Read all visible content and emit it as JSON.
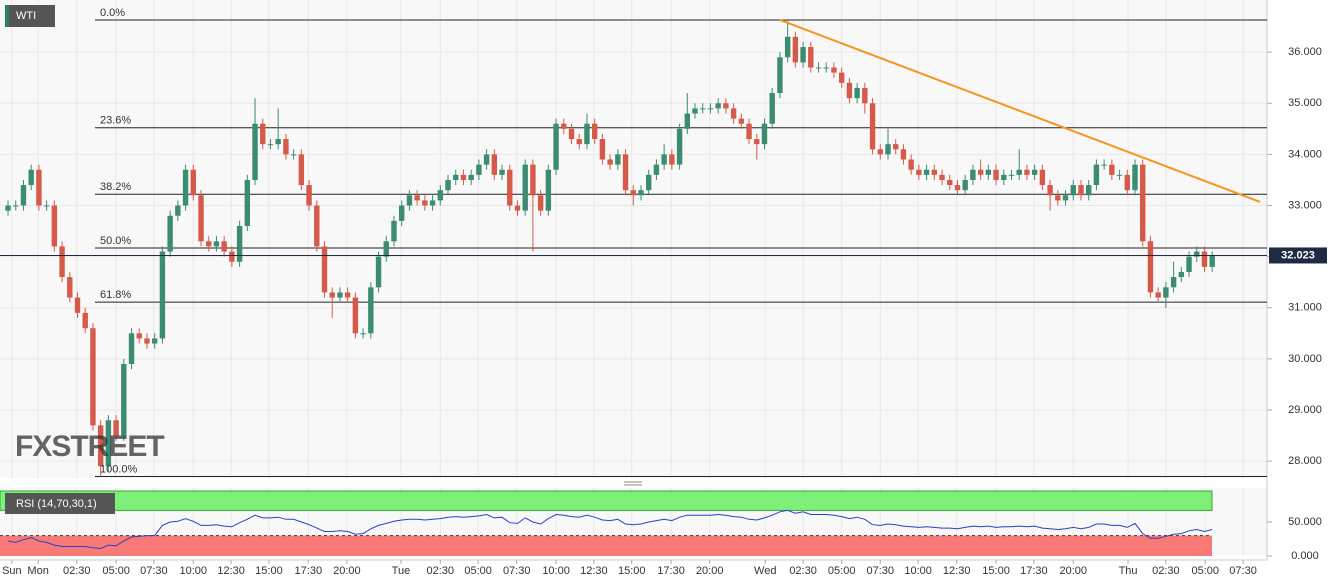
{
  "chart_data": {
    "type": "candlestick",
    "title": "WTI",
    "watermark": "FXSTREET",
    "open": [
      32.9,
      33.0,
      33.0,
      33.4,
      33.7,
      33.0,
      33.0,
      32.2,
      31.6,
      31.2,
      30.9,
      30.6,
      28.7,
      27.9,
      28.8,
      28.5,
      29.9,
      30.5,
      30.4,
      30.3,
      30.4,
      32.1,
      32.8,
      33.0,
      33.7,
      33.2,
      32.3,
      32.2,
      32.3,
      32.1,
      31.9,
      32.6,
      33.5,
      34.6,
      34.2,
      34.2,
      34.3,
      34.0,
      34.0,
      33.4,
      33.0,
      32.2,
      31.3,
      31.2,
      31.3,
      31.2,
      30.5,
      30.5,
      31.4,
      32.0,
      32.3,
      32.7,
      33.0,
      33.2,
      33.1,
      33.0,
      33.1,
      33.3,
      33.5,
      33.6,
      33.5,
      33.6,
      33.8,
      34.0,
      33.6,
      33.7,
      33.0,
      32.9,
      33.8,
      33.2,
      32.9,
      33.7,
      34.6,
      34.5,
      34.3,
      34.2,
      34.6,
      34.3,
      33.9,
      33.8,
      34.0,
      33.3,
      33.2,
      33.3,
      33.6,
      33.8,
      34.0,
      33.8,
      34.5,
      34.8,
      34.9,
      34.9,
      34.9,
      35.0,
      34.9,
      34.7,
      34.6,
      34.3,
      34.2,
      34.6,
      35.2,
      35.9,
      36.3,
      35.8,
      36.1,
      35.7,
      35.7,
      35.7,
      35.6,
      35.4,
      35.1,
      35.3,
      35.0,
      34.1,
      34.0,
      34.2,
      34.1,
      33.9,
      33.7,
      33.6,
      33.7,
      33.6,
      33.5,
      33.4,
      33.3,
      33.5,
      33.7,
      33.6,
      33.7,
      33.5,
      33.6,
      33.6,
      33.7,
      33.6,
      33.7,
      33.4,
      33.2,
      33.1,
      33.2,
      33.4,
      33.2,
      33.4,
      33.8,
      33.8,
      33.6,
      33.6,
      33.3,
      33.8,
      32.3,
      31.3,
      31.2,
      31.4,
      31.6,
      31.7,
      32.0,
      32.1,
      31.8
    ],
    "high": [
      33.1,
      33.1,
      33.5,
      33.8,
      33.8,
      33.1,
      33.1,
      32.3,
      31.7,
      31.3,
      31.0,
      30.7,
      28.8,
      28.9,
      28.9,
      30.0,
      30.6,
      30.6,
      30.5,
      30.5,
      32.2,
      32.9,
      33.1,
      33.8,
      33.8,
      33.3,
      32.4,
      32.4,
      32.4,
      32.2,
      32.7,
      33.6,
      35.1,
      34.7,
      34.3,
      34.9,
      34.4,
      34.1,
      34.1,
      33.5,
      33.1,
      32.3,
      31.4,
      31.4,
      31.4,
      31.3,
      30.6,
      31.5,
      32.1,
      32.4,
      32.8,
      33.1,
      33.3,
      33.3,
      33.2,
      33.2,
      33.4,
      33.6,
      33.7,
      33.7,
      33.7,
      33.9,
      34.1,
      34.1,
      33.8,
      33.8,
      33.1,
      33.9,
      33.9,
      33.3,
      33.8,
      34.7,
      34.7,
      34.6,
      34.4,
      34.8,
      34.7,
      34.4,
      34.0,
      34.1,
      34.1,
      33.4,
      33.4,
      33.7,
      33.9,
      34.2,
      34.1,
      34.6,
      35.2,
      35.0,
      35.0,
      35.0,
      35.1,
      35.1,
      35.0,
      34.8,
      34.7,
      34.4,
      34.7,
      35.3,
      36.0,
      36.63,
      36.4,
      36.2,
      36.2,
      35.8,
      35.8,
      35.8,
      35.7,
      35.5,
      35.4,
      35.4,
      35.1,
      34.2,
      34.5,
      34.3,
      34.2,
      34.0,
      33.8,
      33.8,
      33.8,
      33.7,
      33.6,
      33.5,
      33.6,
      33.8,
      33.9,
      33.8,
      33.8,
      33.7,
      33.7,
      34.1,
      33.8,
      33.8,
      33.8,
      33.5,
      33.3,
      33.3,
      33.5,
      33.5,
      33.5,
      33.9,
      33.9,
      33.9,
      33.7,
      33.7,
      33.9,
      33.9,
      32.4,
      31.4,
      31.5,
      31.9,
      31.8,
      32.1,
      32.2,
      32.2,
      32.1
    ],
    "low": [
      32.8,
      32.9,
      32.9,
      33.3,
      32.9,
      32.9,
      32.1,
      31.5,
      31.1,
      30.8,
      30.5,
      28.6,
      27.7,
      27.8,
      28.4,
      28.4,
      29.8,
      30.3,
      30.2,
      30.2,
      30.3,
      32.0,
      32.7,
      32.9,
      33.1,
      32.2,
      32.1,
      32.1,
      32.0,
      31.8,
      31.8,
      32.5,
      33.4,
      34.1,
      34.1,
      34.1,
      33.9,
      33.9,
      33.3,
      32.9,
      32.1,
      31.2,
      30.8,
      31.1,
      31.1,
      30.4,
      30.4,
      30.4,
      31.3,
      31.9,
      32.2,
      32.6,
      32.9,
      33.0,
      32.9,
      32.9,
      33.0,
      33.2,
      33.4,
      33.4,
      33.4,
      33.5,
      33.7,
      33.5,
      33.5,
      32.9,
      32.8,
      32.8,
      32.1,
      32.8,
      32.8,
      33.6,
      34.4,
      34.2,
      34.1,
      34.1,
      34.2,
      33.8,
      33.7,
      33.7,
      33.2,
      33.0,
      33.1,
      33.2,
      33.5,
      33.7,
      33.7,
      33.7,
      34.4,
      34.7,
      34.8,
      34.8,
      34.8,
      34.8,
      34.6,
      34.5,
      34.2,
      33.9,
      34.1,
      34.5,
      35.1,
      35.8,
      35.7,
      35.7,
      35.6,
      35.6,
      35.6,
      35.5,
      35.3,
      35.0,
      35.0,
      34.8,
      34.0,
      33.9,
      33.9,
      34.0,
      33.8,
      33.6,
      33.5,
      33.5,
      33.5,
      33.4,
      33.3,
      33.2,
      33.2,
      33.4,
      33.5,
      33.5,
      33.4,
      33.4,
      33.5,
      33.5,
      33.5,
      33.5,
      33.3,
      32.9,
      33.0,
      33.0,
      33.1,
      33.1,
      33.1,
      33.3,
      33.7,
      33.5,
      33.5,
      33.2,
      33.2,
      32.2,
      31.2,
      31.1,
      31.0,
      31.3,
      31.5,
      31.6,
      31.9,
      31.7,
      31.7
    ],
    "close": [
      33.0,
      33.0,
      33.4,
      33.7,
      33.0,
      33.0,
      32.2,
      31.6,
      31.2,
      30.9,
      30.6,
      28.7,
      27.9,
      28.8,
      28.5,
      29.9,
      30.5,
      30.4,
      30.3,
      30.4,
      32.1,
      32.8,
      33.0,
      33.7,
      33.2,
      32.3,
      32.2,
      32.3,
      32.1,
      31.9,
      32.6,
      33.5,
      34.6,
      34.2,
      34.2,
      34.3,
      34.0,
      34.0,
      33.4,
      33.0,
      32.2,
      31.3,
      31.2,
      31.3,
      31.2,
      30.5,
      30.5,
      31.4,
      32.0,
      32.3,
      32.7,
      33.0,
      33.2,
      33.1,
      33.0,
      33.1,
      33.3,
      33.5,
      33.6,
      33.5,
      33.6,
      33.8,
      34.0,
      33.6,
      33.7,
      33.0,
      32.9,
      33.8,
      33.2,
      32.9,
      33.7,
      34.6,
      34.5,
      34.3,
      34.2,
      34.6,
      34.3,
      33.9,
      33.8,
      34.0,
      33.3,
      33.2,
      33.3,
      33.6,
      33.8,
      34.0,
      33.8,
      34.5,
      34.8,
      34.9,
      34.9,
      34.9,
      35.0,
      34.9,
      34.7,
      34.6,
      34.3,
      34.2,
      34.6,
      35.2,
      35.9,
      36.3,
      35.8,
      36.1,
      35.7,
      35.7,
      35.7,
      35.6,
      35.4,
      35.1,
      35.3,
      35.0,
      34.1,
      34.0,
      34.2,
      34.1,
      33.9,
      33.7,
      33.6,
      33.7,
      33.6,
      33.5,
      33.4,
      33.3,
      33.5,
      33.7,
      33.6,
      33.7,
      33.5,
      33.6,
      33.6,
      33.7,
      33.6,
      33.7,
      33.4,
      33.2,
      33.1,
      33.2,
      33.4,
      33.2,
      33.4,
      33.8,
      33.8,
      33.6,
      33.6,
      33.3,
      33.8,
      32.3,
      31.3,
      31.2,
      31.4,
      31.6,
      31.7,
      32.0,
      32.1,
      31.8,
      32.023
    ],
    "colors": {
      "up": "#3b8c70",
      "down": "#d65a4a"
    },
    "xlim": [
      -1.04,
      163.1
    ],
    "xticks": [
      {
        "value": 0.5,
        "label": "Sun"
      },
      {
        "value": 3.9,
        "label": "Mon"
      },
      {
        "value": 8.9,
        "label": "02:30"
      },
      {
        "value": 14.0,
        "label": "05:00"
      },
      {
        "value": 18.9,
        "label": "07:30"
      },
      {
        "value": 24.0,
        "label": "10:00"
      },
      {
        "value": 28.9,
        "label": "12:30"
      },
      {
        "value": 33.8,
        "label": "15:00"
      },
      {
        "value": 38.9,
        "label": "17:30"
      },
      {
        "value": 43.9,
        "label": "20:00"
      },
      {
        "value": 50.9,
        "label": "Tue"
      },
      {
        "value": 56.0,
        "label": "02:30"
      },
      {
        "value": 60.9,
        "label": "05:00"
      },
      {
        "value": 65.9,
        "label": "07:30"
      },
      {
        "value": 71.0,
        "label": "10:00"
      },
      {
        "value": 75.9,
        "label": "12:30"
      },
      {
        "value": 80.8,
        "label": "15:00"
      },
      {
        "value": 85.9,
        "label": "17:30"
      },
      {
        "value": 90.9,
        "label": "20:00"
      },
      {
        "value": 98.1,
        "label": "Wed"
      },
      {
        "value": 103.0,
        "label": "02:30"
      },
      {
        "value": 108.0,
        "label": "05:00"
      },
      {
        "value": 113.0,
        "label": "07:30"
      },
      {
        "value": 117.9,
        "label": "10:00"
      },
      {
        "value": 122.9,
        "label": "12:30"
      },
      {
        "value": 128.0,
        "label": "15:00"
      },
      {
        "value": 132.9,
        "label": "17:30"
      },
      {
        "value": 138.0,
        "label": "20:00"
      },
      {
        "value": 145.1,
        "label": "Thu"
      },
      {
        "value": 150.0,
        "label": "02:30"
      },
      {
        "value": 155.1,
        "label": "05:00"
      },
      {
        "value": 160.0,
        "label": "07:30"
      }
    ],
    "ylim": [
      27.67,
      37.02
    ],
    "yticks": [
      {
        "value": 28,
        "label": "28.000"
      },
      {
        "value": 29,
        "label": "29.000"
      },
      {
        "value": 30,
        "label": "30.000"
      },
      {
        "value": 31,
        "label": "31.000"
      },
      {
        "value": 32,
        "label": "32.000"
      },
      {
        "value": 33,
        "label": "33.000"
      },
      {
        "value": 34,
        "label": "34.000"
      },
      {
        "value": 35,
        "label": "35.000"
      },
      {
        "value": 36,
        "label": "36.000"
      }
    ],
    "grid": true,
    "current_price": 32.023,
    "fib_levels": [
      {
        "label": "0.0%",
        "price": 36.63
      },
      {
        "label": "23.6%",
        "price": 34.52
      },
      {
        "label": "38.2%",
        "price": 33.22
      },
      {
        "label": "50.0%",
        "price": 32.17
      },
      {
        "label": "61.8%",
        "price": 31.11
      },
      {
        "label": "100.0%",
        "price": 27.7
      }
    ],
    "trendline": {
      "x": [
        100,
        162.2
      ],
      "y": [
        36.63,
        33.07
      ],
      "color": "#f7941d"
    },
    "rsi": {
      "label": "RSI (14,70,30,1)",
      "color": "#2b3fc9",
      "overbought": 70,
      "oversold": 30,
      "ylim": [
        0,
        100
      ],
      "yticks": [
        {
          "value": 0,
          "label": "0.000"
        },
        {
          "value": 50,
          "label": "50.000"
        }
      ],
      "values": [
        22,
        20,
        24,
        27,
        22,
        20,
        16,
        14,
        14,
        14,
        14,
        12,
        11,
        16,
        15,
        22,
        28,
        29,
        30,
        30,
        45,
        50,
        51,
        55,
        51,
        45,
        45,
        46,
        44,
        43,
        49,
        54,
        60,
        56,
        56,
        57,
        54,
        54,
        50,
        46,
        41,
        36,
        36,
        37,
        36,
        32,
        33,
        40,
        45,
        48,
        51,
        53,
        54,
        54,
        53,
        54,
        55,
        57,
        58,
        57,
        58,
        59,
        61,
        56,
        57,
        49,
        48,
        56,
        50,
        47,
        55,
        61,
        60,
        58,
        57,
        60,
        57,
        53,
        52,
        54,
        47,
        46,
        47,
        50,
        52,
        54,
        52,
        57,
        60,
        60,
        60,
        60,
        61,
        60,
        58,
        57,
        54,
        53,
        56,
        60,
        65,
        67,
        63,
        65,
        61,
        61,
        61,
        60,
        58,
        55,
        57,
        54,
        46,
        45,
        47,
        46,
        44,
        43,
        42,
        43,
        42,
        41,
        41,
        40,
        42,
        44,
        43,
        44,
        42,
        43,
        43,
        44,
        43,
        44,
        41,
        40,
        39,
        40,
        42,
        40,
        42,
        47,
        47,
        45,
        45,
        42,
        48,
        33,
        26,
        26,
        29,
        32,
        33,
        37,
        39,
        36,
        39
      ]
    }
  }
}
